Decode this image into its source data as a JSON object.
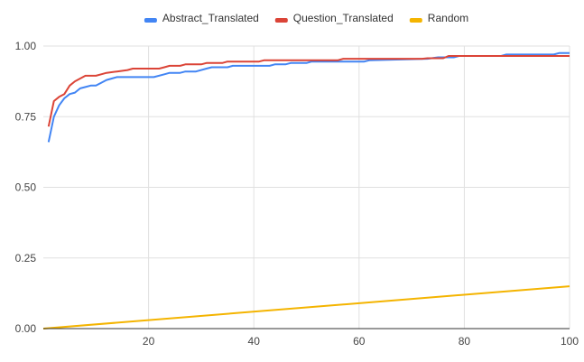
{
  "chart_data": {
    "type": "line",
    "title": "",
    "xlabel": "",
    "ylabel": "",
    "xlim": [
      0,
      100
    ],
    "ylim": [
      0,
      1
    ],
    "x_ticks": [
      20,
      40,
      60,
      80,
      100
    ],
    "x_tick_labels": [
      "20",
      "40",
      "60",
      "80",
      "100"
    ],
    "y_ticks": [
      0,
      0.25,
      0.5,
      0.75,
      1
    ],
    "y_tick_labels": [
      "0.00",
      "0.25",
      "0.50",
      "0.75",
      "1.00"
    ],
    "grid": true,
    "legend_position": "top",
    "series": [
      {
        "name": "Abstract_Translated",
        "color": "#4285f4",
        "points": [
          [
            1,
            0.66
          ],
          [
            2,
            0.75
          ],
          [
            3,
            0.79
          ],
          [
            4,
            0.815
          ],
          [
            5,
            0.83
          ],
          [
            6,
            0.835
          ],
          [
            7,
            0.85
          ],
          [
            8,
            0.855
          ],
          [
            9,
            0.86
          ],
          [
            10,
            0.86
          ],
          [
            11,
            0.87
          ],
          [
            12,
            0.88
          ],
          [
            13,
            0.885
          ],
          [
            14,
            0.89
          ],
          [
            20,
            0.89
          ],
          [
            21,
            0.89
          ],
          [
            23,
            0.9
          ],
          [
            24,
            0.905
          ],
          [
            26,
            0.905
          ],
          [
            27,
            0.91
          ],
          [
            29,
            0.91
          ],
          [
            31,
            0.92
          ],
          [
            32,
            0.925
          ],
          [
            35,
            0.925
          ],
          [
            36,
            0.93
          ],
          [
            43,
            0.93
          ],
          [
            44,
            0.935
          ],
          [
            46,
            0.935
          ],
          [
            47,
            0.94
          ],
          [
            50,
            0.94
          ],
          [
            51,
            0.945
          ],
          [
            61,
            0.945
          ],
          [
            62,
            0.95
          ],
          [
            73,
            0.955
          ],
          [
            75,
            0.96
          ],
          [
            78,
            0.96
          ],
          [
            79,
            0.965
          ],
          [
            87,
            0.965
          ],
          [
            88,
            0.97
          ],
          [
            97,
            0.97
          ],
          [
            98,
            0.975
          ],
          [
            100,
            0.975
          ]
        ]
      },
      {
        "name": "Question_Translated",
        "color": "#db4437",
        "points": [
          [
            1,
            0.715
          ],
          [
            2,
            0.805
          ],
          [
            3,
            0.82
          ],
          [
            4,
            0.83
          ],
          [
            5,
            0.86
          ],
          [
            6,
            0.875
          ],
          [
            7,
            0.885
          ],
          [
            8,
            0.895
          ],
          [
            10,
            0.895
          ],
          [
            11,
            0.9
          ],
          [
            12,
            0.905
          ],
          [
            14,
            0.91
          ],
          [
            16,
            0.915
          ],
          [
            17,
            0.92
          ],
          [
            22,
            0.92
          ],
          [
            23,
            0.925
          ],
          [
            24,
            0.93
          ],
          [
            26,
            0.93
          ],
          [
            27,
            0.935
          ],
          [
            30,
            0.935
          ],
          [
            31,
            0.94
          ],
          [
            34,
            0.94
          ],
          [
            35,
            0.945
          ],
          [
            41,
            0.945
          ],
          [
            42,
            0.95
          ],
          [
            56,
            0.95
          ],
          [
            57,
            0.955
          ],
          [
            72,
            0.955
          ],
          [
            73,
            0.957
          ],
          [
            76,
            0.957
          ],
          [
            77,
            0.965
          ],
          [
            100,
            0.965
          ]
        ]
      },
      {
        "name": "Random",
        "color": "#f4b400",
        "points": [
          [
            0,
            0
          ],
          [
            100,
            0.15
          ]
        ]
      }
    ]
  }
}
